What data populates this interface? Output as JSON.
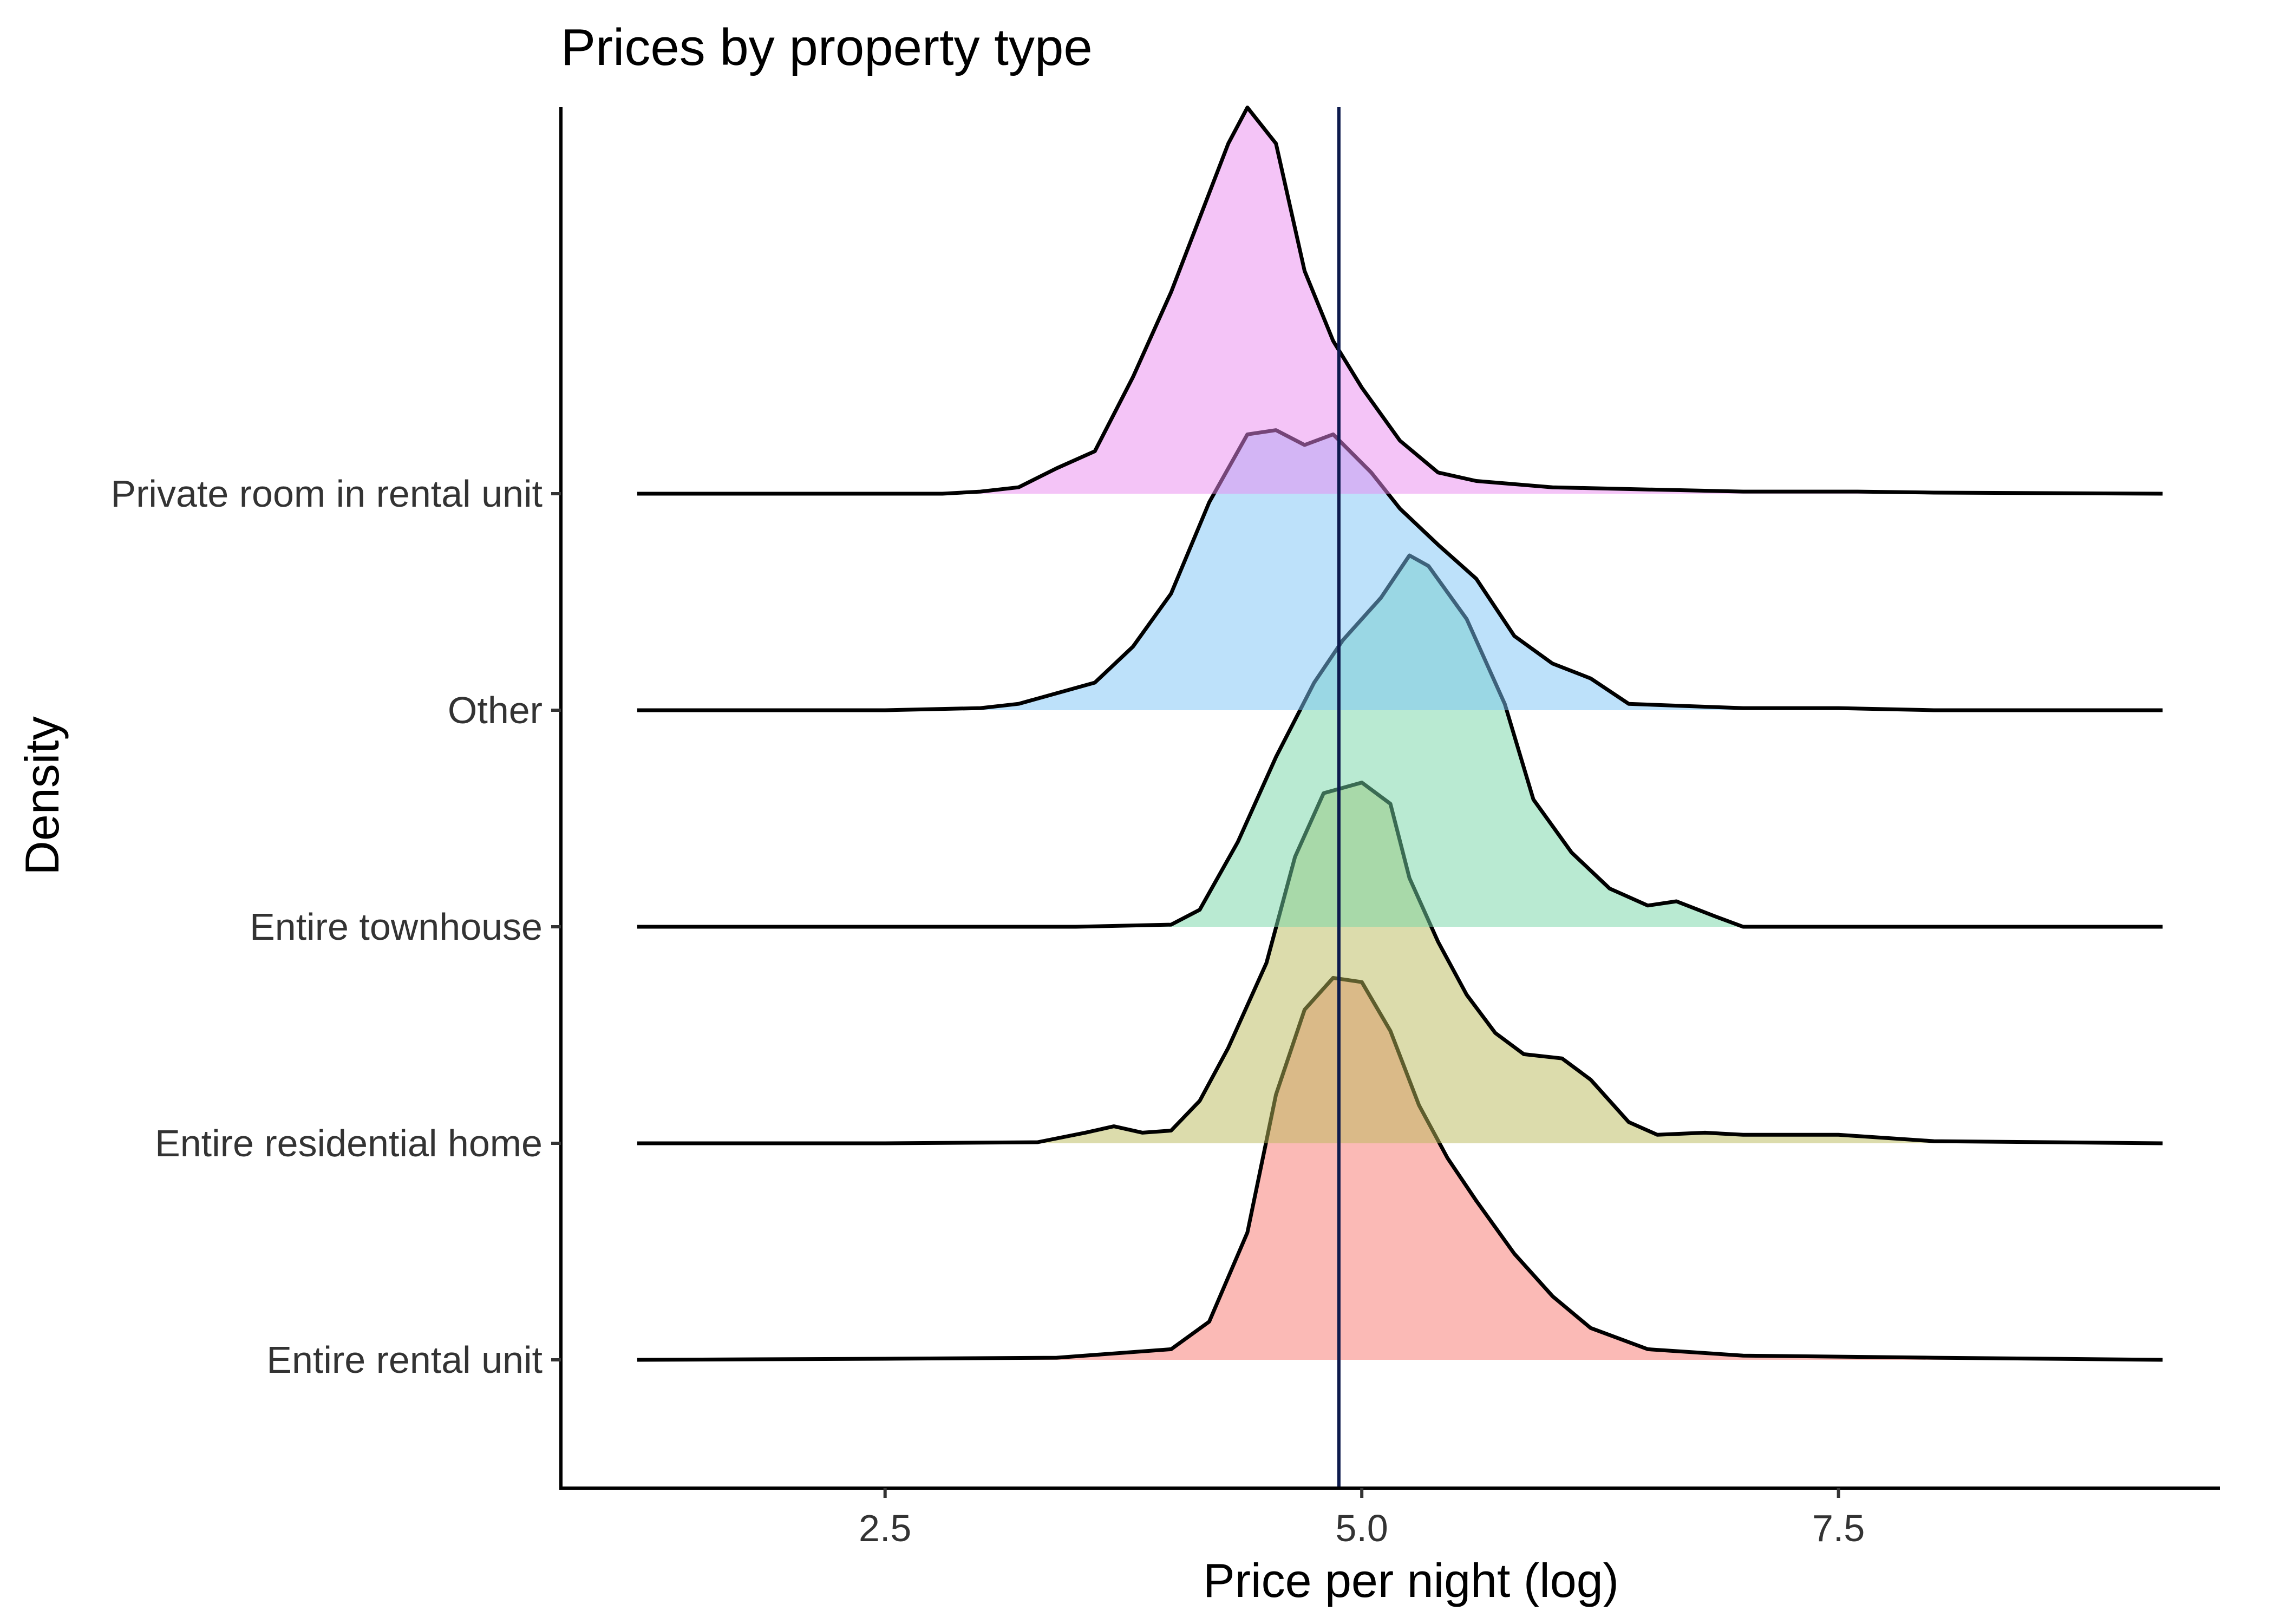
{
  "chart_data": {
    "type": "ridgeline",
    "title": "Prices by property type",
    "xlabel": "Price per night (log)",
    "ylabel": "Density",
    "xlim": [
      0.8,
      9.5
    ],
    "x_ticks": [
      2.5,
      5.0,
      7.5
    ],
    "x_tick_labels": [
      "2.5",
      "5.0",
      "7.5"
    ],
    "x_range": [
      1.2,
      9.2
    ],
    "grid": false,
    "legend": "none",
    "reference_line": {
      "x": 4.88,
      "color": "#0d1a4d"
    },
    "categories": [
      "Entire rental unit",
      "Entire residential home",
      "Entire townhouse",
      "Other",
      "Private room in rental unit"
    ],
    "series": [
      {
        "name": "Entire rental unit",
        "color": "#f8766d",
        "points": [
          [
            1.2,
            0
          ],
          [
            2.5,
            0.005
          ],
          [
            3.4,
            0.01
          ],
          [
            4.0,
            0.05
          ],
          [
            4.2,
            0.18
          ],
          [
            4.4,
            0.6
          ],
          [
            4.55,
            1.25
          ],
          [
            4.7,
            1.65
          ],
          [
            4.85,
            1.8
          ],
          [
            5.0,
            1.78
          ],
          [
            5.15,
            1.55
          ],
          [
            5.3,
            1.2
          ],
          [
            5.45,
            0.95
          ],
          [
            5.6,
            0.75
          ],
          [
            5.8,
            0.5
          ],
          [
            6.0,
            0.3
          ],
          [
            6.2,
            0.15
          ],
          [
            6.5,
            0.05
          ],
          [
            7.0,
            0.02
          ],
          [
            8.0,
            0.01
          ],
          [
            9.2,
            0
          ]
        ]
      },
      {
        "name": "Entire residential home",
        "color": "#b9ba5a",
        "points": [
          [
            1.2,
            0
          ],
          [
            2.5,
            0
          ],
          [
            3.3,
            0.005
          ],
          [
            3.55,
            0.05
          ],
          [
            3.7,
            0.08
          ],
          [
            3.85,
            0.05
          ],
          [
            4.0,
            0.06
          ],
          [
            4.15,
            0.2
          ],
          [
            4.3,
            0.45
          ],
          [
            4.5,
            0.85
          ],
          [
            4.65,
            1.35
          ],
          [
            4.8,
            1.65
          ],
          [
            5.0,
            1.7
          ],
          [
            5.15,
            1.6
          ],
          [
            5.25,
            1.25
          ],
          [
            5.4,
            0.95
          ],
          [
            5.55,
            0.7
          ],
          [
            5.7,
            0.52
          ],
          [
            5.85,
            0.42
          ],
          [
            6.05,
            0.4
          ],
          [
            6.2,
            0.3
          ],
          [
            6.4,
            0.1
          ],
          [
            6.55,
            0.04
          ],
          [
            6.8,
            0.05
          ],
          [
            7.0,
            0.04
          ],
          [
            7.5,
            0.04
          ],
          [
            8.0,
            0.01
          ],
          [
            9.2,
            0
          ]
        ]
      },
      {
        "name": "Entire townhouse",
        "color": "#74d6a6",
        "points": [
          [
            1.2,
            0
          ],
          [
            3.5,
            0
          ],
          [
            4.0,
            0.01
          ],
          [
            4.15,
            0.08
          ],
          [
            4.35,
            0.4
          ],
          [
            4.55,
            0.8
          ],
          [
            4.75,
            1.15
          ],
          [
            4.9,
            1.35
          ],
          [
            5.1,
            1.55
          ],
          [
            5.25,
            1.75
          ],
          [
            5.35,
            1.7
          ],
          [
            5.55,
            1.45
          ],
          [
            5.75,
            1.05
          ],
          [
            5.9,
            0.6
          ],
          [
            6.1,
            0.35
          ],
          [
            6.3,
            0.18
          ],
          [
            6.5,
            0.1
          ],
          [
            6.65,
            0.12
          ],
          [
            6.85,
            0.05
          ],
          [
            7.0,
            0
          ],
          [
            9.2,
            0
          ]
        ]
      },
      {
        "name": "Other",
        "color": "#7cc4f5",
        "points": [
          [
            1.2,
            0
          ],
          [
            2.5,
            0
          ],
          [
            3.0,
            0.01
          ],
          [
            3.2,
            0.03
          ],
          [
            3.4,
            0.08
          ],
          [
            3.6,
            0.13
          ],
          [
            3.8,
            0.3
          ],
          [
            4.0,
            0.55
          ],
          [
            4.2,
            0.98
          ],
          [
            4.4,
            1.3
          ],
          [
            4.55,
            1.32
          ],
          [
            4.7,
            1.25
          ],
          [
            4.85,
            1.3
          ],
          [
            5.05,
            1.12
          ],
          [
            5.2,
            0.95
          ],
          [
            5.4,
            0.78
          ],
          [
            5.6,
            0.62
          ],
          [
            5.8,
            0.35
          ],
          [
            6.0,
            0.22
          ],
          [
            6.2,
            0.15
          ],
          [
            6.4,
            0.03
          ],
          [
            6.7,
            0.02
          ],
          [
            7.0,
            0.01
          ],
          [
            7.5,
            0.01
          ],
          [
            8.0,
            0.0
          ],
          [
            9.2,
            0
          ]
        ]
      },
      {
        "name": "Private room in rental unit",
        "color": "#e98aef",
        "points": [
          [
            1.2,
            0
          ],
          [
            2.8,
            0
          ],
          [
            3.0,
            0.01
          ],
          [
            3.2,
            0.03
          ],
          [
            3.4,
            0.12
          ],
          [
            3.6,
            0.2
          ],
          [
            3.8,
            0.55
          ],
          [
            4.0,
            0.95
          ],
          [
            4.15,
            1.3
          ],
          [
            4.3,
            1.65
          ],
          [
            4.4,
            1.82
          ],
          [
            4.55,
            1.65
          ],
          [
            4.7,
            1.05
          ],
          [
            4.85,
            0.72
          ],
          [
            5.0,
            0.5
          ],
          [
            5.2,
            0.25
          ],
          [
            5.4,
            0.1
          ],
          [
            5.6,
            0.06
          ],
          [
            6.0,
            0.03
          ],
          [
            6.5,
            0.02
          ],
          [
            7.0,
            0.01
          ],
          [
            7.6,
            0.01
          ],
          [
            8.0,
            0.005
          ],
          [
            9.2,
            0
          ]
        ]
      }
    ]
  }
}
